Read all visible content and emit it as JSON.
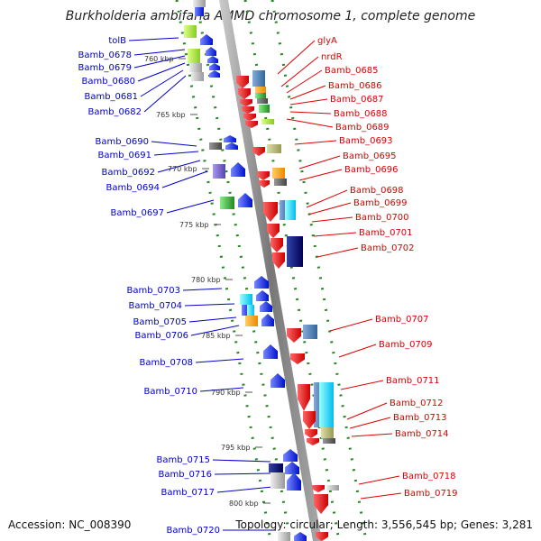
{
  "title": "Burkholderia ambifaria AMMD chromosome 1, complete genome",
  "accession": "Accession: NC_008390",
  "topology": "Topology: circular; Length: 3,556,545 bp; Genes: 3,281",
  "colors": {
    "forward_label": "#0000cc",
    "reverse_label": "#dd0000",
    "backbone": "#888888",
    "tick": "#228822",
    "forward_gene": "#0022ee",
    "reverse_gene": "#ee1111"
  },
  "scale_ticks": [
    "760 kbp",
    "765 kbp",
    "770 kbp",
    "775 kbp",
    "780 kbp",
    "785 kbp",
    "790 kbp",
    "795 kbp",
    "800 kbp"
  ],
  "forward_genes": [
    "tolB",
    "Bamb_0678",
    "Bamb_0679",
    "Bamb_0680",
    "Bamb_0681",
    "Bamb_0682",
    "Bamb_0690",
    "Bamb_0691",
    "Bamb_0692",
    "Bamb_0694",
    "Bamb_0697",
    "Bamb_0703",
    "Bamb_0704",
    "Bamb_0705",
    "Bamb_0706",
    "Bamb_0708",
    "Bamb_0710",
    "Bamb_0715",
    "Bamb_0716",
    "Bamb_0717",
    "Bamb_0720"
  ],
  "reverse_genes": [
    "glyA",
    "nrdR",
    "Bamb_0685",
    "Bamb_0686",
    "Bamb_0687",
    "Bamb_0688",
    "Bamb_0689",
    "Bamb_0693",
    "Bamb_0695",
    "Bamb_0696",
    "Bamb_0698",
    "Bamb_0699",
    "Bamb_0700",
    "Bamb_0701",
    "Bamb_0702",
    "Bamb_0707",
    "Bamb_0709",
    "Bamb_0711",
    "Bamb_0712",
    "Bamb_0713",
    "Bamb_0714",
    "Bamb_0718",
    "Bamb_0719"
  ]
}
